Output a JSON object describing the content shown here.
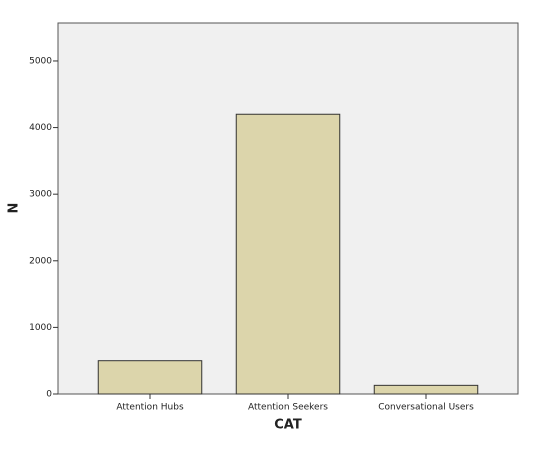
{
  "chart_data": {
    "type": "bar",
    "x_label": "CAT",
    "y_label": "N",
    "categories": [
      "Attention Hubs",
      "Attention Seekers",
      "Conversational Users"
    ],
    "values": [
      500,
      4200,
      130
    ],
    "color": "#dcd5ab",
    "ylim": [
      0,
      5570
    ],
    "yticks": [
      0,
      1000,
      2000,
      3000,
      4000,
      5000
    ]
  }
}
